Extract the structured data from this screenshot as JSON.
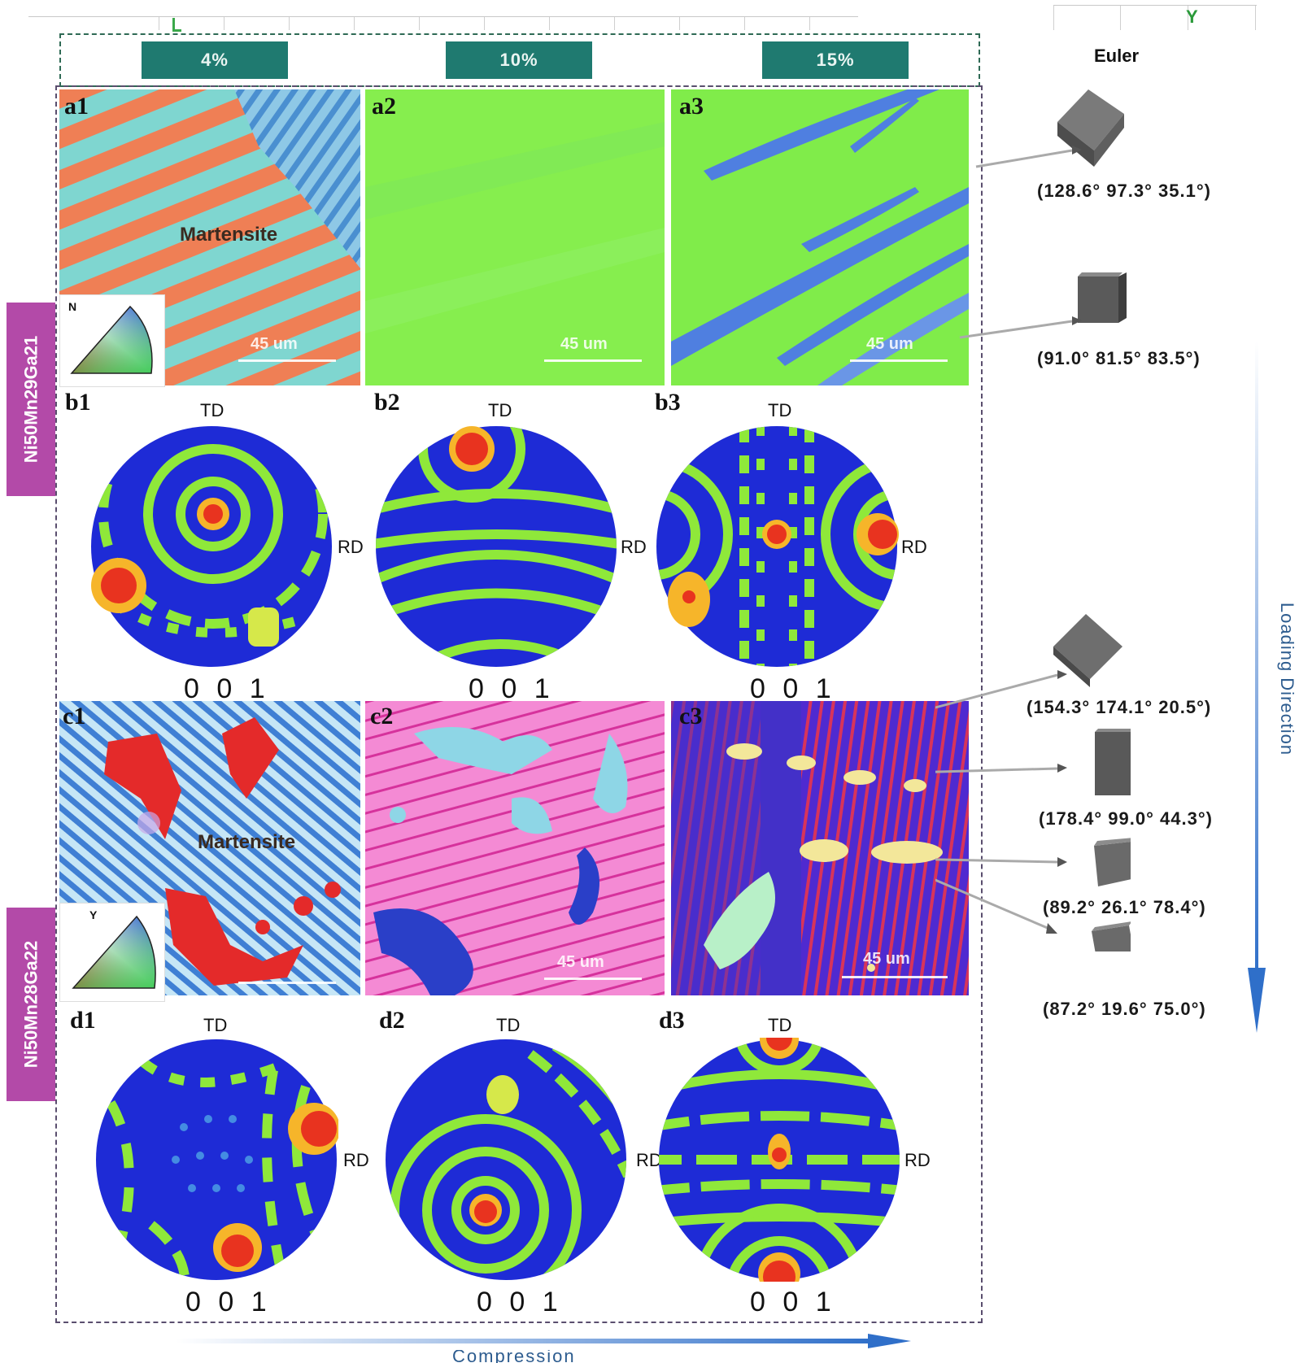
{
  "figure": {
    "top_axis_label": "Y",
    "strains": [
      "4%",
      "10%",
      "15%"
    ],
    "euler_header": "Euler",
    "loading_direction": "Loading Direction",
    "bottom_label": "Compression",
    "alloy_labels": [
      "Ni50Mn29Ga21",
      "Ni50Mn28Ga22"
    ],
    "legend_labels": [
      "N",
      "Y"
    ],
    "panels": {
      "a1": {
        "id": "a1",
        "phase": "Martensite",
        "scale": "45 um"
      },
      "a2": {
        "id": "a2",
        "scale": "45 um"
      },
      "a3": {
        "id": "a3",
        "scale": "45 um"
      },
      "b1": {
        "id": "b1",
        "td": "TD",
        "rd": "RD",
        "plane": "0 0 1"
      },
      "b2": {
        "id": "b2",
        "td": "TD",
        "rd": "RD",
        "plane": "0 0 1"
      },
      "b3": {
        "id": "b3",
        "td": "TD",
        "rd": "RD",
        "plane": "0 0 1"
      },
      "c1": {
        "id": "c1",
        "phase": "Martensite"
      },
      "c2": {
        "id": "c2",
        "scale": "45 um"
      },
      "c3": {
        "id": "c3",
        "scale": "45 um"
      },
      "d1": {
        "id": "d1",
        "td": "TD",
        "rd": "RD",
        "plane": "0 0 1"
      },
      "d2": {
        "id": "d2",
        "td": "TD",
        "rd": "RD",
        "plane": "0 0 1"
      },
      "d3": {
        "id": "d3",
        "td": "TD",
        "rd": "RD",
        "plane": "0 0 1"
      }
    },
    "euler_angles": [
      "(128.6° 97.3° 35.1°)",
      "(91.0° 81.5° 83.5°)",
      "(154.3° 174.1° 20.5°)",
      "(178.4° 99.0° 44.3°)",
      "(89.2° 26.1° 78.4°)",
      "(87.2° 19.6° 75.0°)"
    ],
    "colors": {
      "strain_tag": "#1f7a70",
      "alloy_tag": "#b34aa8",
      "pole_background": "#1e2bd6",
      "pole_band": "#8fe83a",
      "pole_peak": "#e8331f",
      "arrow": "#2f6fc9"
    }
  }
}
